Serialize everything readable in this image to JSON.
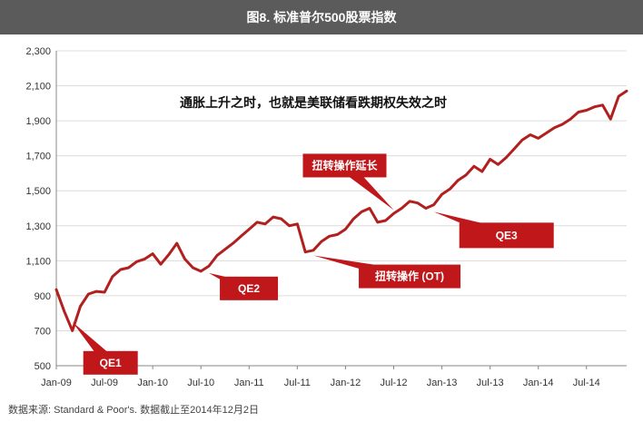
{
  "title": "图8. 标准普尔500股票指数",
  "source_note": "数据来源: Standard & Poor's. 数据截止至2014年12月2日",
  "colors": {
    "title_bg": "#5b5b5b",
    "line": "#b21f1f",
    "callout": "#c0171b",
    "axis_text": "#333333",
    "grid": "#dcdcdc"
  },
  "chart_data": {
    "type": "line",
    "title": "图8. 标准普尔500股票指数",
    "subtitle": "通胀上升之时，也就是美联储看跌期权失效之时",
    "xlabel": "",
    "ylabel": "",
    "ylim": [
      500,
      2300
    ],
    "yticks": [
      500,
      700,
      900,
      1100,
      1300,
      1500,
      1700,
      1900,
      2100,
      2300
    ],
    "ytick_labels": [
      "500",
      "700",
      "900",
      "1,100",
      "1,300",
      "1,500",
      "1,700",
      "1,900",
      "2,100",
      "2,300"
    ],
    "xticks": [
      "Jan-09",
      "Jul-09",
      "Jan-10",
      "Jul-10",
      "Jan-11",
      "Jul-11",
      "Jan-12",
      "Jul-12",
      "Jan-13",
      "Jul-13",
      "Jan-14",
      "Jul-14"
    ],
    "xlim": [
      "2009-01",
      "2014-12"
    ],
    "grid": "horizontal",
    "series": [
      {
        "x": [
          "2009-01",
          "2009-02",
          "2009-03",
          "2009-04",
          "2009-05",
          "2009-06",
          "2009-07",
          "2009-08",
          "2009-09",
          "2009-10",
          "2009-11",
          "2009-12",
          "2010-01",
          "2010-02",
          "2010-03",
          "2010-04",
          "2010-05",
          "2010-06",
          "2010-07",
          "2010-08",
          "2010-09",
          "2010-10",
          "2010-11",
          "2010-12",
          "2011-01",
          "2011-02",
          "2011-03",
          "2011-04",
          "2011-05",
          "2011-06",
          "2011-07",
          "2011-08",
          "2011-09",
          "2011-10",
          "2011-11",
          "2011-12",
          "2012-01",
          "2012-02",
          "2012-03",
          "2012-04",
          "2012-05",
          "2012-06",
          "2012-07",
          "2012-08",
          "2012-09",
          "2012-10",
          "2012-11",
          "2012-12",
          "2013-01",
          "2013-02",
          "2013-03",
          "2013-04",
          "2013-05",
          "2013-06",
          "2013-07",
          "2013-08",
          "2013-09",
          "2013-10",
          "2013-11",
          "2013-12",
          "2014-01",
          "2014-02",
          "2014-03",
          "2014-04",
          "2014-05",
          "2014-06",
          "2014-07",
          "2014-08",
          "2014-09",
          "2014-10",
          "2014-11",
          "2014-12"
        ],
        "values": [
          935,
          810,
          700,
          840,
          910,
          925,
          920,
          1010,
          1050,
          1060,
          1095,
          1110,
          1140,
          1080,
          1135,
          1200,
          1110,
          1060,
          1040,
          1070,
          1130,
          1165,
          1200,
          1240,
          1280,
          1320,
          1310,
          1350,
          1340,
          1300,
          1310,
          1150,
          1160,
          1210,
          1240,
          1250,
          1280,
          1340,
          1380,
          1400,
          1320,
          1330,
          1370,
          1400,
          1440,
          1430,
          1400,
          1420,
          1480,
          1510,
          1560,
          1590,
          1640,
          1610,
          1680,
          1650,
          1690,
          1740,
          1790,
          1820,
          1800,
          1830,
          1860,
          1880,
          1910,
          1950,
          1960,
          1980,
          1990,
          1910,
          2040,
          2070
        ]
      }
    ],
    "annotations": [
      {
        "label": "QE1",
        "x": "2009-03",
        "y": 750
      },
      {
        "label": "QE2",
        "x": "2010-08",
        "y": 1030
      },
      {
        "label": "扭转操作延长",
        "x": "2012-07",
        "y": 1390
      },
      {
        "label": "扭转操作 (OT)",
        "x": "2011-09",
        "y": 1130
      },
      {
        "label": "QE3",
        "x": "2012-12",
        "y": 1380
      }
    ]
  }
}
